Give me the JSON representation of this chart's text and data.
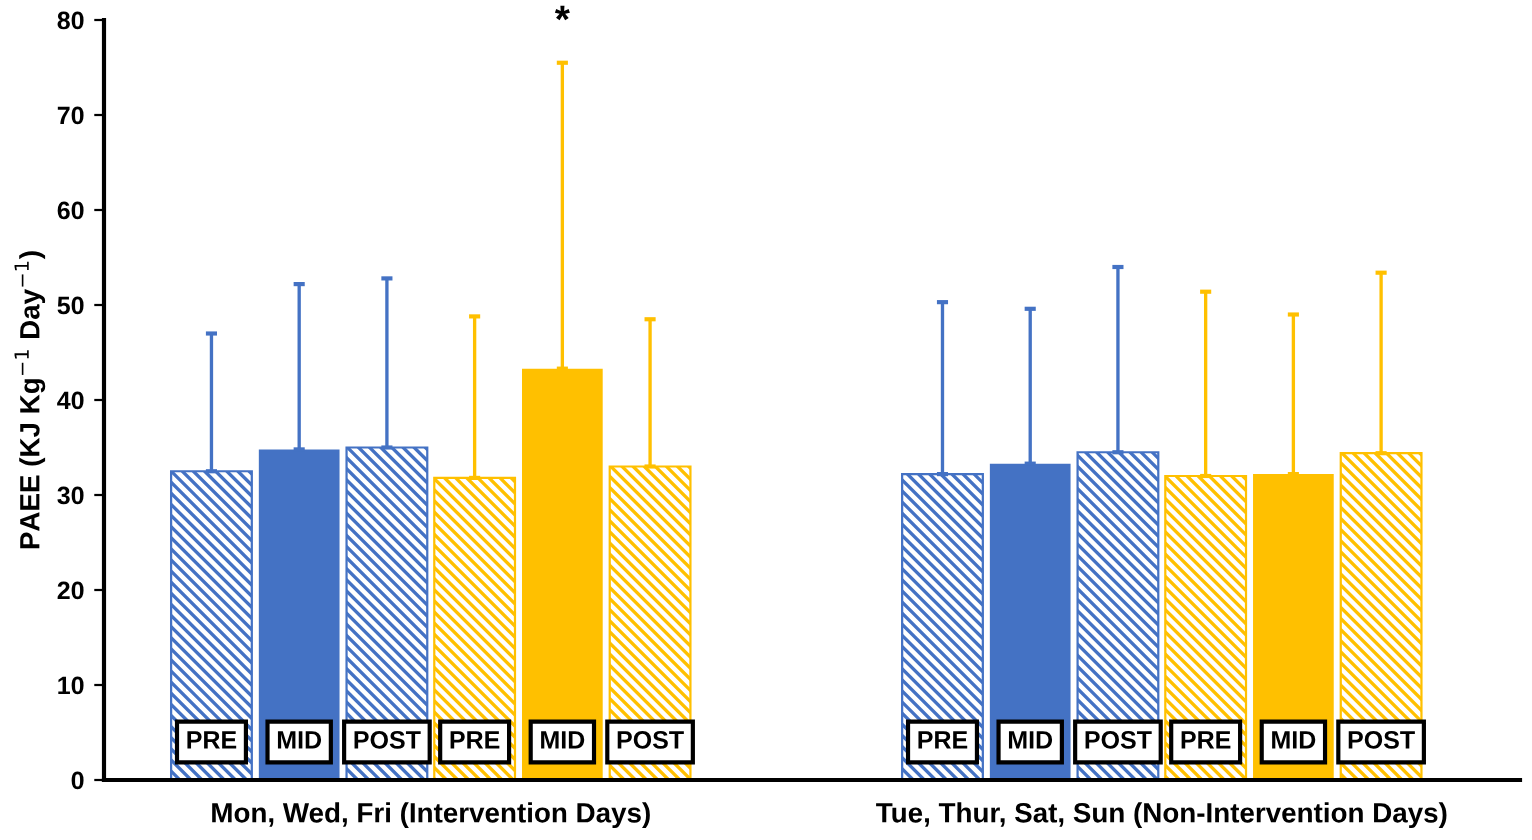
{
  "chart_data": {
    "type": "bar",
    "ylabel": "PAEE (KJ Kg$^{−1}$ Day$^{−1}$)",
    "categories": [
      "Mon, Wed, Fri (Intervention Days)",
      "Tue, Thur, Sat, Sun (Non-Intervention Days)"
    ],
    "series": [
      {
        "name": "PRE",
        "color": "#4472c4",
        "values": [
          32.5,
          32.2
        ],
        "errors": [
          [
            32.5,
            47
          ],
          [
            32.2,
            50.3
          ]
        ]
      },
      {
        "name": "MID",
        "color": "#4472c4",
        "values": [
          34.8,
          33.3
        ],
        "errors": [
          [
            34.8,
            52.2
          ],
          [
            33.3,
            49.6
          ]
        ]
      },
      {
        "name": "POST",
        "color": "#4472c4",
        "values": [
          35,
          34.5
        ],
        "errors": [
          [
            35,
            52.8
          ],
          [
            34.5,
            54
          ]
        ]
      },
      {
        "name": "PRE",
        "color": "#ffc000",
        "values": [
          31.8,
          32
        ],
        "errors": [
          [
            31.8,
            48.8
          ],
          [
            32,
            51.4
          ]
        ]
      },
      {
        "name": "MID",
        "color": "#ffc000",
        "values": [
          43.3,
          32.2
        ],
        "errors": [
          [
            43.3,
            75.5
          ],
          [
            32.2,
            49
          ]
        ]
      },
      {
        "name": "POST",
        "color": "#ffc000",
        "values": [
          33,
          34.4
        ],
        "errors": [
          [
            33,
            48.5
          ],
          [
            34.4,
            53.4
          ]
        ]
      }
    ],
    "annotations": [
      "*"
    ],
    "ylim": [
      0,
      80
    ],
    "yticks": [
      0,
      10,
      20,
      30,
      40,
      50,
      60,
      70,
      80
    ],
    "grid": false,
    "legend": false
  }
}
